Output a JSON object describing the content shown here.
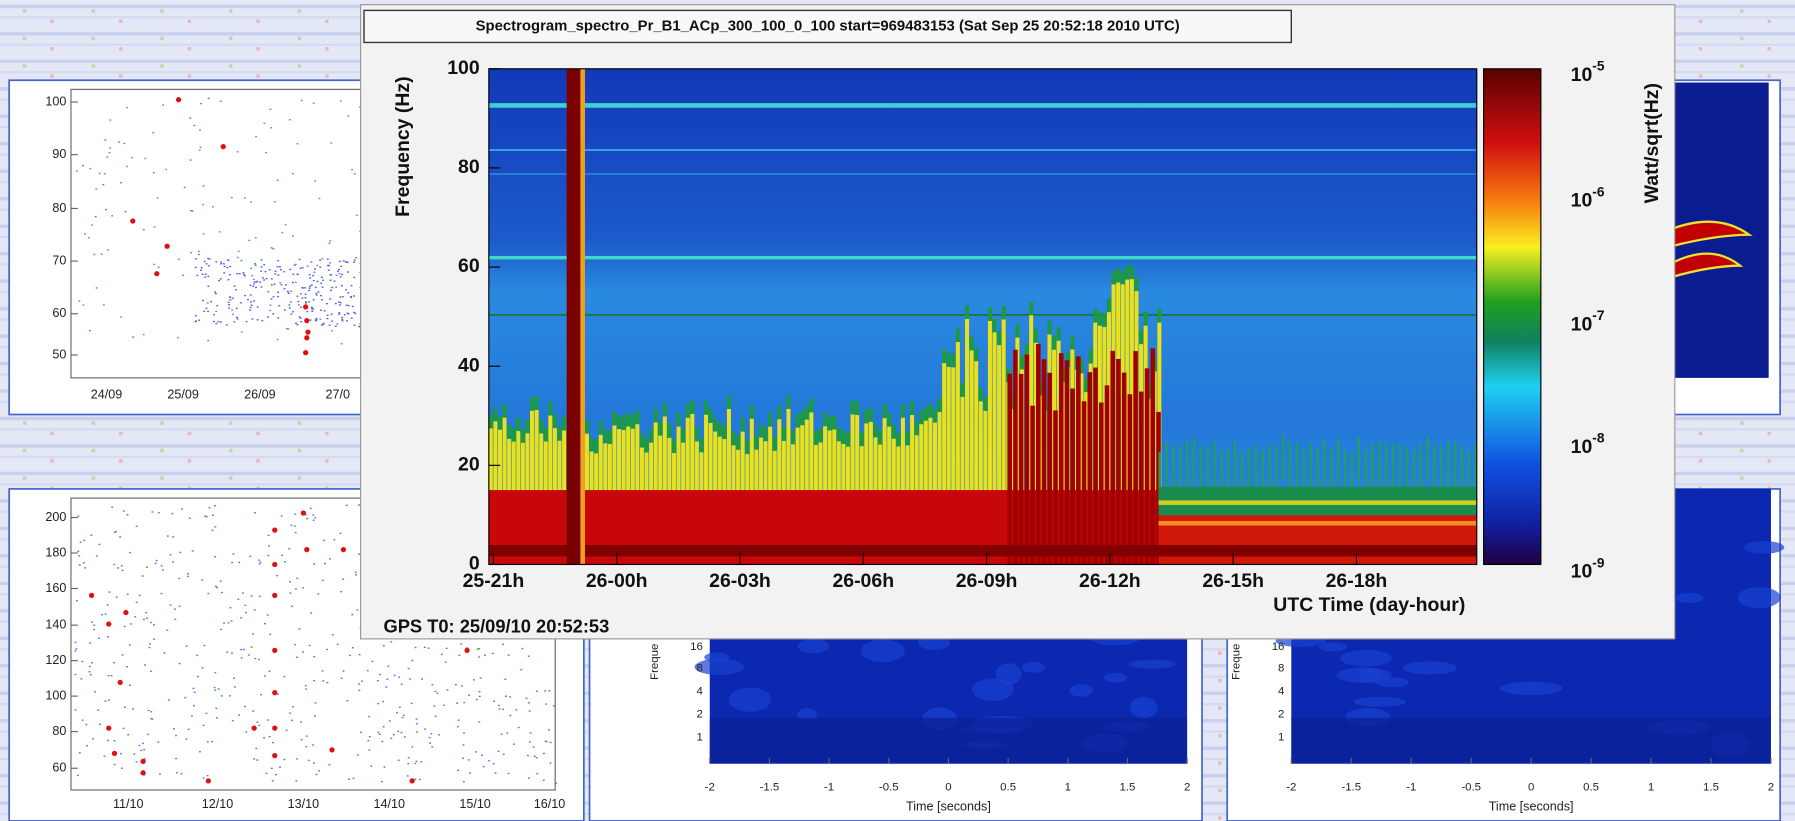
{
  "main_window": {
    "title": "Spectrogram_spectro_Pr_B1_ACp_300_100_0_100 start=969483153 (Sat Sep 25 20:52:18 2010 UTC)",
    "y_axis_label": "Frequency (Hz)",
    "y_ticks": [
      "100",
      "80",
      "60",
      "40",
      "20",
      "0"
    ],
    "x_ticks": [
      "25-21h",
      "26-00h",
      "26-03h",
      "26-06h",
      "26-09h",
      "26-12h",
      "26-15h",
      "26-18h"
    ],
    "x_axis_label": "UTC Time (day-hour)",
    "colorbar_label": "Watt/sqrt(Hz)",
    "colorbar_ticks": [
      {
        "base": "10",
        "exponent": "-5"
      },
      {
        "base": "10",
        "exponent": "-6"
      },
      {
        "base": "10",
        "exponent": "-7"
      },
      {
        "base": "10",
        "exponent": "-8"
      },
      {
        "base": "10",
        "exponent": "-9"
      }
    ],
    "footer": "GPS T0: 25/09/10 20:52:53"
  },
  "top_left_panel": {
    "y_ticks": [
      "100",
      "90",
      "80",
      "70",
      "60",
      "50"
    ],
    "x_ticks": [
      "24/09",
      "25/09",
      "26/09",
      "27/0"
    ]
  },
  "bottom_left_panel": {
    "y_ticks": [
      "200",
      "180",
      "160",
      "140",
      "120",
      "100",
      "80",
      "60"
    ],
    "x_ticks": [
      "11/10",
      "12/10",
      "13/10",
      "14/10",
      "15/10",
      "16/10"
    ]
  },
  "bottom_middle_panel": {
    "y_axis_label": "Freque",
    "y_ticks": [
      "16",
      "8",
      "4",
      "2",
      "1"
    ],
    "x_ticks": [
      "-2",
      "-1.5",
      "-1",
      "-0.5",
      "0",
      "0.5",
      "1",
      "1.5",
      "2"
    ],
    "x_axis_label": "Time [seconds]"
  },
  "bottom_right_panel": {
    "y_axis_label": "Freque",
    "y_ticks": [
      "16",
      "8",
      "4",
      "2",
      "1"
    ],
    "x_ticks": [
      "-2",
      "-1.5",
      "-1",
      "-0.5",
      "0",
      "0.5",
      "1",
      "1.5",
      "2"
    ],
    "x_axis_label": "Time [seconds]"
  }
}
